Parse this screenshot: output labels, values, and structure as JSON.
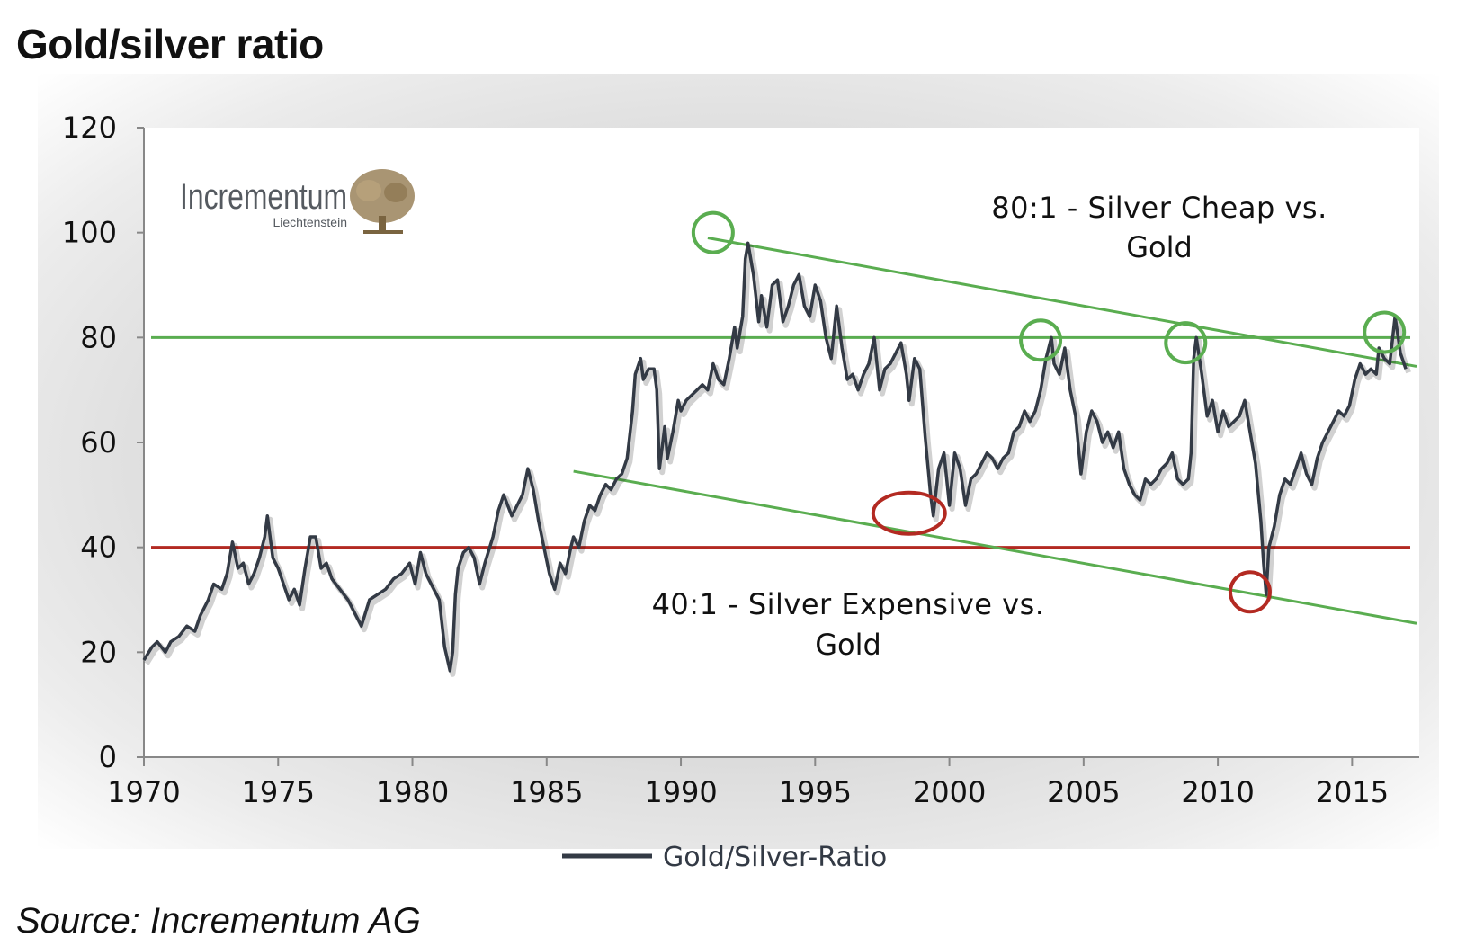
{
  "title": "Gold/silver ratio",
  "source": "Source: Incrementum AG",
  "logo": {
    "name": "Incrementum",
    "sub": "Liechtenstein",
    "icon": "tree-icon",
    "color": "#a08a64"
  },
  "colors": {
    "series": "#333a45",
    "green": "#5aad50",
    "red": "#b32a22",
    "axis": "#888888"
  },
  "chart_data": {
    "type": "line",
    "title": "Gold/silver ratio",
    "xlim": [
      1970,
      2017.5
    ],
    "ylim": [
      0,
      120
    ],
    "x_ticks": [
      1970,
      1975,
      1980,
      1985,
      1990,
      1995,
      2000,
      2005,
      2010,
      2015
    ],
    "y_ticks": [
      0,
      20,
      40,
      60,
      80,
      100,
      120
    ],
    "grid": false,
    "legend_position": "bottom-center",
    "series": [
      {
        "name": "Gold/Silver-Ratio",
        "points": [
          [
            1970.0,
            18.5
          ],
          [
            1970.3,
            21
          ],
          [
            1970.5,
            22
          ],
          [
            1970.8,
            20
          ],
          [
            1971.0,
            22
          ],
          [
            1971.3,
            23
          ],
          [
            1971.6,
            25
          ],
          [
            1971.9,
            24
          ],
          [
            1972.1,
            27
          ],
          [
            1972.4,
            30
          ],
          [
            1972.6,
            33
          ],
          [
            1972.9,
            32
          ],
          [
            1973.1,
            35
          ],
          [
            1973.3,
            41
          ],
          [
            1973.5,
            36
          ],
          [
            1973.7,
            37
          ],
          [
            1973.9,
            33
          ],
          [
            1974.1,
            35
          ],
          [
            1974.3,
            38
          ],
          [
            1974.5,
            42
          ],
          [
            1974.6,
            46
          ],
          [
            1974.8,
            38
          ],
          [
            1975.0,
            36
          ],
          [
            1975.2,
            33
          ],
          [
            1975.4,
            30
          ],
          [
            1975.6,
            32
          ],
          [
            1975.8,
            29
          ],
          [
            1976.0,
            36
          ],
          [
            1976.2,
            42
          ],
          [
            1976.4,
            42
          ],
          [
            1976.6,
            36
          ],
          [
            1976.8,
            37
          ],
          [
            1977.0,
            34
          ],
          [
            1977.3,
            32
          ],
          [
            1977.6,
            30
          ],
          [
            1977.9,
            27
          ],
          [
            1978.1,
            25
          ],
          [
            1978.4,
            30
          ],
          [
            1978.7,
            31
          ],
          [
            1979.0,
            32
          ],
          [
            1979.3,
            34
          ],
          [
            1979.6,
            35
          ],
          [
            1979.9,
            37
          ],
          [
            1980.1,
            33
          ],
          [
            1980.3,
            39
          ],
          [
            1980.5,
            35
          ],
          [
            1980.8,
            32
          ],
          [
            1981.0,
            30
          ],
          [
            1981.2,
            21
          ],
          [
            1981.4,
            16.5
          ],
          [
            1981.5,
            20
          ],
          [
            1981.6,
            31
          ],
          [
            1981.7,
            36
          ],
          [
            1981.9,
            39
          ],
          [
            1982.1,
            40
          ],
          [
            1982.3,
            38
          ],
          [
            1982.5,
            33
          ],
          [
            1982.7,
            37
          ],
          [
            1983.0,
            42
          ],
          [
            1983.2,
            47
          ],
          [
            1983.4,
            50
          ],
          [
            1983.7,
            46
          ],
          [
            1983.9,
            48
          ],
          [
            1984.1,
            50
          ],
          [
            1984.3,
            55
          ],
          [
            1984.5,
            51
          ],
          [
            1984.7,
            45
          ],
          [
            1984.9,
            40
          ],
          [
            1985.1,
            35
          ],
          [
            1985.3,
            32
          ],
          [
            1985.5,
            37
          ],
          [
            1985.7,
            35
          ],
          [
            1985.9,
            40
          ],
          [
            1986.0,
            42
          ],
          [
            1986.2,
            40
          ],
          [
            1986.4,
            45
          ],
          [
            1986.6,
            48
          ],
          [
            1986.8,
            47
          ],
          [
            1987.0,
            50
          ],
          [
            1987.2,
            52
          ],
          [
            1987.4,
            51
          ],
          [
            1987.6,
            53
          ],
          [
            1987.8,
            54
          ],
          [
            1988.0,
            57
          ],
          [
            1988.2,
            66
          ],
          [
            1988.3,
            73
          ],
          [
            1988.5,
            76
          ],
          [
            1988.6,
            72
          ],
          [
            1988.8,
            74
          ],
          [
            1989.0,
            74
          ],
          [
            1989.1,
            70
          ],
          [
            1989.2,
            55
          ],
          [
            1989.4,
            63
          ],
          [
            1989.5,
            57
          ],
          [
            1989.7,
            62
          ],
          [
            1989.9,
            68
          ],
          [
            1990.0,
            66
          ],
          [
            1990.2,
            68
          ],
          [
            1990.4,
            69
          ],
          [
            1990.6,
            70
          ],
          [
            1990.8,
            71
          ],
          [
            1991.0,
            70
          ],
          [
            1991.2,
            75
          ],
          [
            1991.4,
            72
          ],
          [
            1991.6,
            71
          ],
          [
            1991.8,
            76
          ],
          [
            1992.0,
            82
          ],
          [
            1992.1,
            78
          ],
          [
            1992.3,
            84
          ],
          [
            1992.4,
            95
          ],
          [
            1992.5,
            98
          ],
          [
            1992.7,
            92
          ],
          [
            1992.9,
            83
          ],
          [
            1993.0,
            88
          ],
          [
            1993.2,
            82
          ],
          [
            1993.4,
            90
          ],
          [
            1993.6,
            91
          ],
          [
            1993.8,
            83
          ],
          [
            1994.0,
            86
          ],
          [
            1994.2,
            90
          ],
          [
            1994.4,
            92
          ],
          [
            1994.6,
            86
          ],
          [
            1994.8,
            84
          ],
          [
            1995.0,
            90
          ],
          [
            1995.2,
            87
          ],
          [
            1995.4,
            80
          ],
          [
            1995.6,
            76
          ],
          [
            1995.8,
            86
          ],
          [
            1996.0,
            78
          ],
          [
            1996.2,
            72
          ],
          [
            1996.4,
            73
          ],
          [
            1996.6,
            70
          ],
          [
            1996.8,
            73
          ],
          [
            1997.0,
            75
          ],
          [
            1997.2,
            80
          ],
          [
            1997.4,
            70
          ],
          [
            1997.6,
            74
          ],
          [
            1997.8,
            75
          ],
          [
            1998.0,
            77
          ],
          [
            1998.2,
            79
          ],
          [
            1998.4,
            73
          ],
          [
            1998.5,
            68
          ],
          [
            1998.7,
            76
          ],
          [
            1998.9,
            74
          ],
          [
            1999.1,
            61
          ],
          [
            1999.3,
            50
          ],
          [
            1999.4,
            46
          ],
          [
            1999.6,
            55
          ],
          [
            1999.8,
            58
          ],
          [
            2000.0,
            48
          ],
          [
            2000.2,
            58
          ],
          [
            2000.4,
            55
          ],
          [
            2000.6,
            48
          ],
          [
            2000.8,
            53
          ],
          [
            2001.0,
            54
          ],
          [
            2001.2,
            56
          ],
          [
            2001.4,
            58
          ],
          [
            2001.6,
            57
          ],
          [
            2001.8,
            55
          ],
          [
            2002.0,
            57
          ],
          [
            2002.2,
            58
          ],
          [
            2002.4,
            62
          ],
          [
            2002.6,
            63
          ],
          [
            2002.8,
            66
          ],
          [
            2003.0,
            64
          ],
          [
            2003.2,
            66
          ],
          [
            2003.4,
            70
          ],
          [
            2003.6,
            76
          ],
          [
            2003.8,
            80
          ],
          [
            2003.9,
            75
          ],
          [
            2004.1,
            73
          ],
          [
            2004.3,
            78
          ],
          [
            2004.5,
            70
          ],
          [
            2004.7,
            65
          ],
          [
            2004.9,
            54
          ],
          [
            2005.1,
            62
          ],
          [
            2005.3,
            66
          ],
          [
            2005.5,
            64
          ],
          [
            2005.7,
            60
          ],
          [
            2005.9,
            62
          ],
          [
            2006.1,
            59
          ],
          [
            2006.3,
            62
          ],
          [
            2006.5,
            55
          ],
          [
            2006.7,
            52
          ],
          [
            2006.9,
            50
          ],
          [
            2007.1,
            49
          ],
          [
            2007.3,
            53
          ],
          [
            2007.5,
            52
          ],
          [
            2007.7,
            53
          ],
          [
            2007.9,
            55
          ],
          [
            2008.1,
            56
          ],
          [
            2008.3,
            58
          ],
          [
            2008.5,
            53
          ],
          [
            2008.7,
            52
          ],
          [
            2008.9,
            53
          ],
          [
            2009.0,
            58
          ],
          [
            2009.1,
            76
          ],
          [
            2009.2,
            80
          ],
          [
            2009.4,
            73
          ],
          [
            2009.6,
            65
          ],
          [
            2009.8,
            68
          ],
          [
            2010.0,
            62
          ],
          [
            2010.2,
            66
          ],
          [
            2010.4,
            63
          ],
          [
            2010.6,
            64
          ],
          [
            2010.8,
            65
          ],
          [
            2011.0,
            68
          ],
          [
            2011.2,
            62
          ],
          [
            2011.4,
            56
          ],
          [
            2011.6,
            45
          ],
          [
            2011.7,
            37
          ],
          [
            2011.8,
            31
          ],
          [
            2011.9,
            40
          ],
          [
            2012.1,
            44
          ],
          [
            2012.3,
            50
          ],
          [
            2012.5,
            53
          ],
          [
            2012.7,
            52
          ],
          [
            2012.9,
            55
          ],
          [
            2013.1,
            58
          ],
          [
            2013.3,
            54
          ],
          [
            2013.5,
            52
          ],
          [
            2013.7,
            57
          ],
          [
            2013.9,
            60
          ],
          [
            2014.1,
            62
          ],
          [
            2014.3,
            64
          ],
          [
            2014.5,
            66
          ],
          [
            2014.7,
            65
          ],
          [
            2014.9,
            67
          ],
          [
            2015.1,
            72
          ],
          [
            2015.3,
            75
          ],
          [
            2015.5,
            73
          ],
          [
            2015.7,
            74
          ],
          [
            2015.9,
            73
          ],
          [
            2016.0,
            78
          ],
          [
            2016.2,
            76
          ],
          [
            2016.4,
            75
          ],
          [
            2016.6,
            84
          ],
          [
            2016.8,
            77
          ],
          [
            2017.0,
            74
          ]
        ]
      }
    ],
    "reference_lines": [
      {
        "y": 80,
        "color": "#5aad50"
      },
      {
        "y": 40,
        "color": "#b32a22"
      }
    ],
    "trend_lines": [
      {
        "from": [
          1991,
          99
        ],
        "to": [
          2017.4,
          74.5
        ],
        "color": "#5aad50"
      },
      {
        "from": [
          1986.0,
          54.5
        ],
        "to": [
          2017.4,
          25.5
        ],
        "color": "#5aad50"
      }
    ],
    "circles": [
      {
        "x": 1991.2,
        "y": 100,
        "color": "#5aad50"
      },
      {
        "x": 2003.4,
        "y": 79.5,
        "color": "#5aad50"
      },
      {
        "x": 2008.8,
        "y": 79,
        "color": "#5aad50"
      },
      {
        "x": 2016.2,
        "y": 81,
        "color": "#5aad50"
      },
      {
        "x": 1998.5,
        "y": 46.5,
        "color": "#b32a22"
      },
      {
        "x": 2011.2,
        "y": 31.5,
        "color": "#b32a22"
      }
    ],
    "annotations": {
      "upper_line1": "80:1 - Silver Cheap vs.",
      "upper_line2": "Gold",
      "lower_line1": "40:1 - Silver Expensive vs.",
      "lower_line2": "Gold"
    }
  }
}
